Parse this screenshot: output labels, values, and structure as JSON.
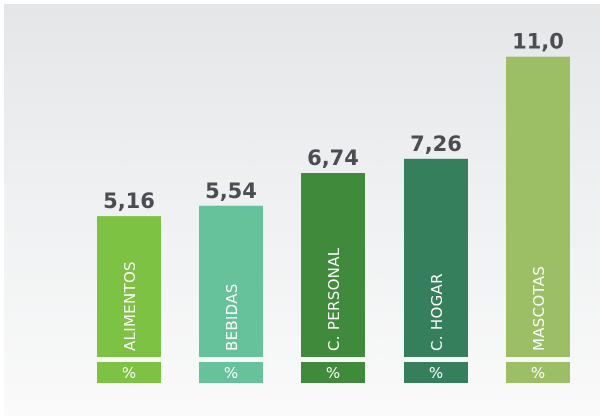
{
  "chart_data": {
    "type": "bar",
    "categories": [
      "ALIMENTOS",
      "BEBIDAS",
      "C. PERSONAL",
      "C. HOGAR",
      "MASCOTAS"
    ],
    "values": [
      5.16,
      5.54,
      6.74,
      7.26,
      11.0
    ],
    "value_labels": [
      "5,16",
      "5,54",
      "6,74",
      "7,26",
      "11,0"
    ],
    "unit_label": "%",
    "colors": [
      "#7dc242",
      "#66c29a",
      "#3f8a3b",
      "#357f5c",
      "#9cbf65"
    ],
    "title": "",
    "xlabel": "",
    "ylabel": "",
    "grid": false,
    "legend": "none"
  }
}
